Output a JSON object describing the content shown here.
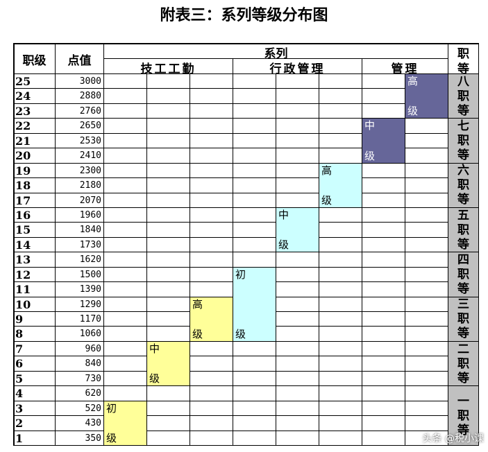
{
  "title": "附表三：系列等级分布图",
  "header": {
    "level_label": "职级",
    "points_label": "点值",
    "series_label": "系列",
    "rank_col_label": [
      "职",
      "等"
    ],
    "groups": [
      "技工工勤",
      "行政管理",
      "管理"
    ]
  },
  "levels": [
    {
      "level": "25",
      "points": "3000"
    },
    {
      "level": "24",
      "points": "2880"
    },
    {
      "level": "23",
      "points": "2760"
    },
    {
      "level": "22",
      "points": "2650"
    },
    {
      "level": "21",
      "points": "2530"
    },
    {
      "level": "20",
      "points": "2410"
    },
    {
      "level": "19",
      "points": "2300"
    },
    {
      "level": "18",
      "points": "2180"
    },
    {
      "level": "17",
      "points": "2070"
    },
    {
      "level": "16",
      "points": "1960"
    },
    {
      "level": "15",
      "points": "1840"
    },
    {
      "level": "14",
      "points": "1730"
    },
    {
      "level": "13",
      "points": "1620"
    },
    {
      "level": "12",
      "points": "1500"
    },
    {
      "level": "11",
      "points": "1390"
    },
    {
      "level": "10",
      "points": "1290"
    },
    {
      "level": "9",
      "points": "1170"
    },
    {
      "level": "8",
      "points": "1060"
    },
    {
      "level": "7",
      "points": "960"
    },
    {
      "level": "6",
      "points": "840"
    },
    {
      "level": "5",
      "points": "730"
    },
    {
      "level": "4",
      "points": "620"
    },
    {
      "level": "3",
      "points": "520"
    },
    {
      "level": "2",
      "points": "430"
    },
    {
      "level": "1",
      "points": "350"
    }
  ],
  "bands": [
    {
      "col": 0,
      "rows": [
        22,
        24
      ],
      "top": "初",
      "bottom": "级",
      "color": "#ffff99"
    },
    {
      "col": 1,
      "rows": [
        18,
        20
      ],
      "top": "中",
      "bottom": "级",
      "color": "#ffff99"
    },
    {
      "col": 2,
      "rows": [
        15,
        17
      ],
      "top": "高",
      "bottom": "级",
      "color": "#ffff99"
    },
    {
      "col": 3,
      "rows": [
        13,
        17
      ],
      "top": "初",
      "bottom": "级",
      "color": "#ccffff"
    },
    {
      "col": 4,
      "rows": [
        9,
        11
      ],
      "top": "中",
      "bottom": "级",
      "color": "#ccffff"
    },
    {
      "col": 5,
      "rows": [
        6,
        8
      ],
      "top": "高",
      "bottom": "级",
      "color": "#ccffff"
    },
    {
      "col": 6,
      "rows": [
        3,
        5
      ],
      "top": "中",
      "bottom": "级",
      "color": "#666699"
    },
    {
      "col": 7,
      "rows": [
        0,
        2
      ],
      "top": "高",
      "bottom": "级",
      "color": "#666699"
    }
  ],
  "ranks": [
    {
      "label": [
        "八",
        "职",
        "等"
      ],
      "rows": [
        0,
        2
      ]
    },
    {
      "label": [
        "七",
        "职",
        "等"
      ],
      "rows": [
        3,
        5
      ]
    },
    {
      "label": [
        "六",
        "职",
        "等"
      ],
      "rows": [
        6,
        8
      ]
    },
    {
      "label": [
        "五",
        "职",
        "等"
      ],
      "rows": [
        9,
        11
      ]
    },
    {
      "label": [
        "四",
        "职",
        "等"
      ],
      "rows": [
        12,
        14
      ]
    },
    {
      "label": [
        "三",
        "职",
        "等"
      ],
      "rows": [
        15,
        17
      ]
    },
    {
      "label": [
        "二",
        "职",
        "等"
      ],
      "rows": [
        18,
        20
      ]
    },
    {
      "label": [
        "一",
        "职",
        "等"
      ],
      "rows": [
        21,
        24
      ]
    }
  ],
  "colors": {
    "rank_bg": "#c0c0c0",
    "border": "#000000",
    "light_text": "#ffffff"
  },
  "watermark": "头条 @税小课"
}
